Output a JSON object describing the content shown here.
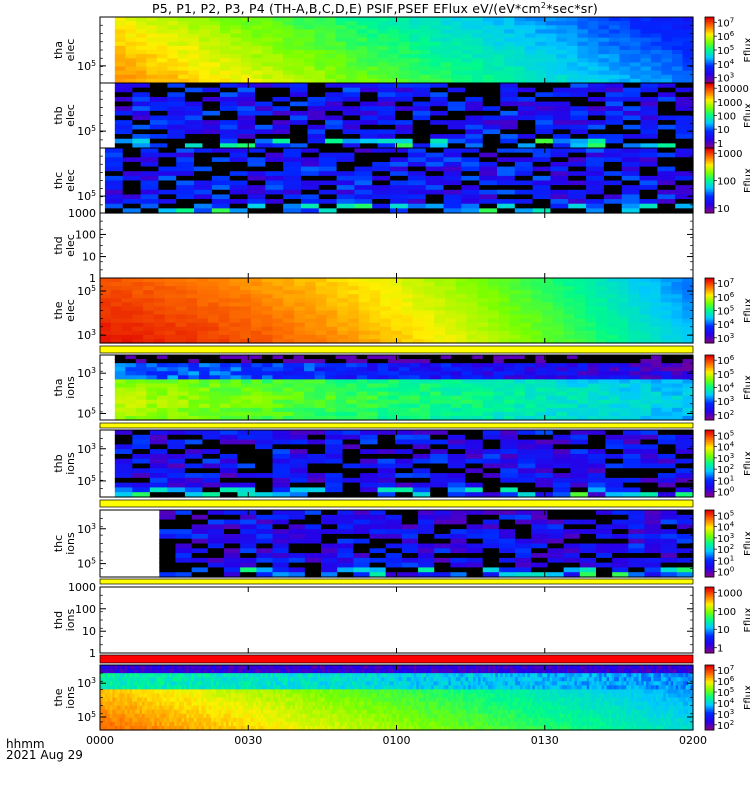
{
  "figure": {
    "title_text": "P5, P1, P2, P3, P4  (TH-A,B,C,D,E) PSIF,PSEF EFlux eV/(eV*cm",
    "title_sup": "2",
    "title_tail": "*sec*sr)",
    "time_axis_label": "hhmm",
    "date_label": "2021 Aug 29"
  },
  "chart_data": {
    "type": "heatmap",
    "x_ticks": [
      "0000",
      "0030",
      "0100",
      "0130",
      "0200"
    ],
    "x_range": [
      "0000",
      "0200"
    ],
    "colorbar_label": "Eflux",
    "panels": [
      {
        "id": "tha_elec",
        "ylabel": [
          "tha",
          "elec"
        ],
        "yscale": "log",
        "yticks": [
          {
            "sup": "5",
            "frac": 0.26
          }
        ],
        "data_start": "0003",
        "pattern": "elec_a",
        "colorbar": {
          "ticks": [
            {
              "label": "10",
              "sup": "7"
            },
            {
              "label": "10",
              "sup": "6"
            },
            {
              "label": "10",
              "sup": "5"
            },
            {
              "label": "10",
              "sup": "4"
            },
            {
              "label": "10",
              "sup": "3"
            }
          ]
        }
      },
      {
        "id": "thb_elec",
        "ylabel": [
          "thb",
          "elec"
        ],
        "yscale": "log",
        "yticks": [
          {
            "sup": "5",
            "frac": 0.26
          }
        ],
        "data_start": "0003",
        "pattern": "sparse_elec",
        "colorbar": {
          "ticks": [
            {
              "label": "10000"
            },
            {
              "label": "1000"
            },
            {
              "label": "100"
            },
            {
              "label": "10"
            },
            {
              "label": "1"
            }
          ]
        }
      },
      {
        "id": "thc_elec",
        "ylabel": [
          "thc",
          "elec"
        ],
        "yscale": "log",
        "yticks": [
          {
            "sup": "5",
            "frac": 0.26
          }
        ],
        "data_start": "0001",
        "pattern": "sparse_elec_c",
        "colorbar": {
          "ticks": [
            {
              "label": "1000"
            },
            {
              "label": "100"
            },
            {
              "label": "10"
            }
          ]
        }
      },
      {
        "id": "thd_elec",
        "ylabel": [
          "thd",
          "elec"
        ],
        "yscale": "log",
        "yticks": [
          {
            "label": "1000",
            "frac": 1.0
          },
          {
            "label": "100",
            "frac": 0.67
          },
          {
            "label": "10",
            "frac": 0.33
          },
          {
            "label": "1",
            "frac": 0.0
          }
        ],
        "data_start": null,
        "pattern": "empty",
        "colorbar": null
      },
      {
        "id": "the_elec",
        "ylabel": [
          "the",
          "elec"
        ],
        "yscale": "log",
        "yticks": [
          {
            "sup": "5",
            "frac": 0.8
          },
          {
            "sup": "3",
            "frac": 0.12
          }
        ],
        "data_start": "0000",
        "pattern": "elec_e",
        "colorbar": {
          "ticks": [
            {
              "label": "10",
              "sup": "7"
            },
            {
              "label": "10",
              "sup": "6"
            },
            {
              "label": "10",
              "sup": "5"
            },
            {
              "label": "10",
              "sup": "4"
            },
            {
              "label": "10",
              "sup": "3"
            }
          ]
        }
      },
      {
        "id": "tha_ions",
        "ylabel": [
          "tha",
          "ions"
        ],
        "yscale": "log",
        "yticks": [
          {
            "sup": "3",
            "frac": 0.72
          },
          {
            "sup": "5",
            "frac": 0.1
          }
        ],
        "data_start": "0003",
        "pattern": "ions_a",
        "colorbar": {
          "ticks": [
            {
              "label": "10",
              "sup": "6"
            },
            {
              "label": "10",
              "sup": "5"
            },
            {
              "label": "10",
              "sup": "4"
            },
            {
              "label": "10",
              "sup": "3"
            },
            {
              "label": "10",
              "sup": "2"
            }
          ]
        }
      },
      {
        "id": "thb_ions",
        "ylabel": [
          "thb",
          "ions"
        ],
        "yscale": "log",
        "yticks": [
          {
            "sup": "3",
            "frac": 0.72
          },
          {
            "sup": "5",
            "frac": 0.24
          }
        ],
        "data_start": "0003",
        "pattern": "sparse_ions",
        "colorbar": {
          "ticks": [
            {
              "label": "10",
              "sup": "5"
            },
            {
              "label": "10",
              "sup": "4"
            },
            {
              "label": "10",
              "sup": "3"
            },
            {
              "label": "10",
              "sup": "2"
            },
            {
              "label": "10",
              "sup": "1"
            },
            {
              "label": "10",
              "sup": "0"
            }
          ]
        }
      },
      {
        "id": "thc_ions",
        "ylabel": [
          "thc",
          "ions"
        ],
        "yscale": "log",
        "yticks": [
          {
            "sup": "3",
            "frac": 0.72
          },
          {
            "sup": "5",
            "frac": 0.2
          }
        ],
        "data_start": "0012",
        "pattern": "sparse_ions_c",
        "colorbar": {
          "ticks": [
            {
              "label": "10",
              "sup": "5"
            },
            {
              "label": "10",
              "sup": "4"
            },
            {
              "label": "10",
              "sup": "3"
            },
            {
              "label": "10",
              "sup": "2"
            },
            {
              "label": "10",
              "sup": "1"
            },
            {
              "label": "10",
              "sup": "0"
            }
          ]
        }
      },
      {
        "id": "thd_ions",
        "ylabel": [
          "thd",
          "ions"
        ],
        "yscale": "log",
        "yticks": [
          {
            "label": "1000",
            "frac": 1.0
          },
          {
            "label": "100",
            "frac": 0.67
          },
          {
            "label": "10",
            "frac": 0.33
          },
          {
            "label": "1",
            "frac": 0.0
          }
        ],
        "data_start": null,
        "pattern": "empty",
        "colorbar": {
          "ticks": [
            {
              "label": "1000"
            },
            {
              "label": "100"
            },
            {
              "label": "10"
            },
            {
              "label": "1"
            }
          ]
        }
      },
      {
        "id": "the_ions",
        "ylabel": [
          "the",
          "ions"
        ],
        "yscale": "log",
        "yticks": [
          {
            "sup": "3",
            "frac": 0.72
          },
          {
            "sup": "5",
            "frac": 0.2
          }
        ],
        "data_start": "0000",
        "pattern": "ions_e",
        "colorbar": {
          "ticks": [
            {
              "label": "10",
              "sup": "7"
            },
            {
              "label": "10",
              "sup": "6"
            },
            {
              "label": "10",
              "sup": "5"
            },
            {
              "label": "10",
              "sup": "4"
            },
            {
              "label": "10",
              "sup": "3"
            },
            {
              "label": "10",
              "sup": "2"
            }
          ]
        }
      }
    ]
  }
}
